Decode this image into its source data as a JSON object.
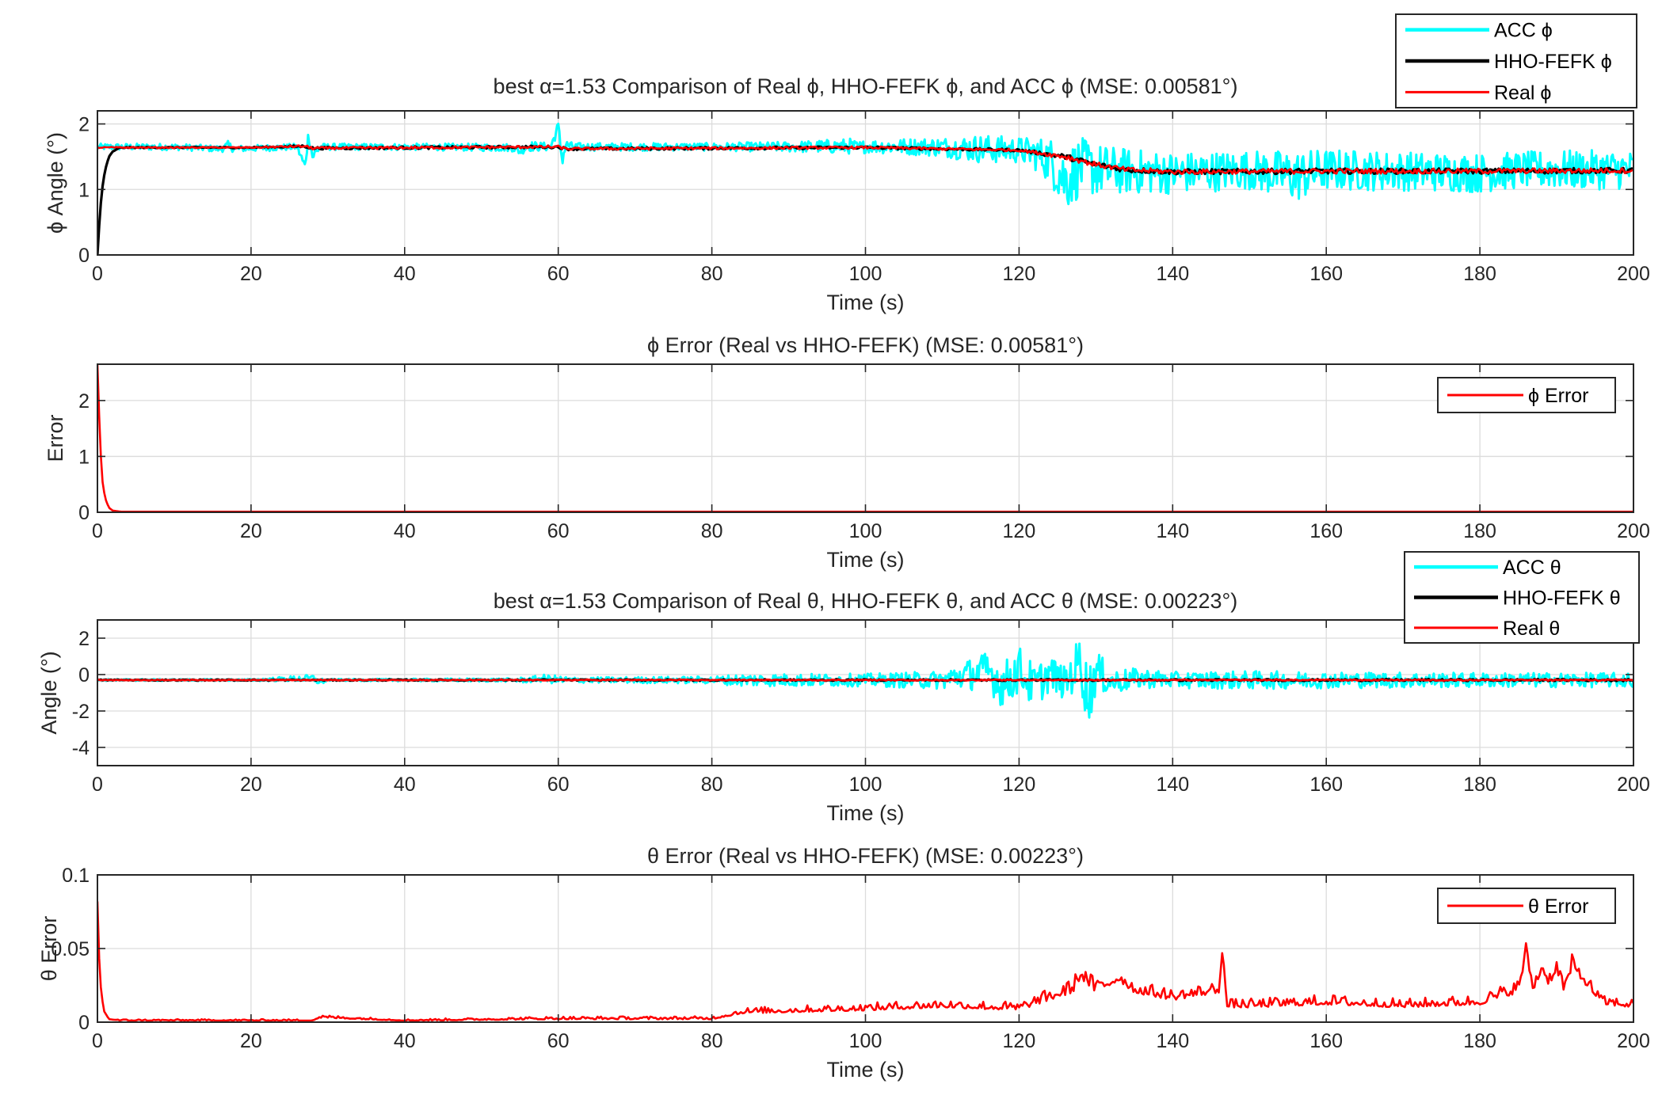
{
  "chart_data": [
    {
      "type": "line",
      "title": "best α=1.53 Comparison of Real ϕ, HHO-FEFK ϕ, and ACC ϕ (MSE: 0.00581°)",
      "xlabel": "Time (s)",
      "ylabel": "ϕ Angle (°)",
      "xlim": [
        0,
        200
      ],
      "ylim": [
        0,
        2.2
      ],
      "xticks": [
        "0",
        "20",
        "40",
        "60",
        "80",
        "100",
        "120",
        "140",
        "160",
        "180",
        "200"
      ],
      "yticks": [
        "0",
        "1",
        "2"
      ],
      "ytick_values": [
        0,
        1,
        2
      ],
      "grid": true,
      "legend_position": "top-right",
      "series": [
        {
          "name": "ACC ϕ",
          "color": "#00ffff",
          "noisy": true,
          "x": [
            0,
            10,
            16,
            17,
            18,
            26,
            27,
            27.5,
            28,
            29,
            40,
            54,
            55,
            56,
            59,
            60,
            60.5,
            61,
            62,
            80,
            90,
            98,
            99,
            100,
            110,
            115,
            120,
            122,
            124,
            126,
            128,
            130,
            134,
            140,
            150,
            156,
            160,
            170,
            180,
            186,
            190,
            200
          ],
          "y": [
            1.65,
            1.65,
            1.62,
            1.66,
            1.62,
            1.65,
            1.35,
            1.85,
            1.5,
            1.65,
            1.65,
            1.64,
            1.58,
            1.66,
            1.65,
            1.95,
            1.45,
            1.68,
            1.65,
            1.65,
            1.65,
            1.66,
            1.62,
            1.66,
            1.65,
            1.62,
            1.6,
            1.55,
            1.45,
            1.15,
            1.35,
            1.3,
            1.28,
            1.25,
            1.3,
            1.2,
            1.3,
            1.28,
            1.25,
            1.3,
            1.3,
            1.3
          ],
          "amplitude": [
            0.05,
            0.05,
            0.05,
            0.08,
            0.05,
            0.05,
            0.1,
            0.1,
            0.1,
            0.05,
            0.05,
            0.06,
            0.06,
            0.08,
            0.06,
            0.1,
            0.12,
            0.08,
            0.06,
            0.06,
            0.08,
            0.12,
            0.12,
            0.1,
            0.15,
            0.22,
            0.2,
            0.25,
            0.35,
            0.5,
            0.45,
            0.4,
            0.35,
            0.32,
            0.3,
            0.4,
            0.32,
            0.3,
            0.3,
            0.28,
            0.3,
            0.3
          ]
        },
        {
          "name": "HHO-FEFK  ϕ",
          "color": "#000000",
          "noisy": false,
          "x": [
            0,
            0.3,
            0.6,
            1,
            1.5,
            2,
            3,
            20,
            27,
            28,
            60,
            61,
            100,
            120,
            123,
            126,
            130,
            134,
            140,
            160,
            180,
            200
          ],
          "y": [
            0,
            0.6,
            1.0,
            1.3,
            1.5,
            1.58,
            1.64,
            1.64,
            1.66,
            1.63,
            1.65,
            1.62,
            1.64,
            1.6,
            1.55,
            1.5,
            1.38,
            1.3,
            1.27,
            1.28,
            1.28,
            1.29
          ],
          "amplitude": [
            0,
            0,
            0,
            0,
            0,
            0,
            0.01,
            0.01,
            0.02,
            0.02,
            0.02,
            0.02,
            0.02,
            0.02,
            0.03,
            0.04,
            0.04,
            0.04,
            0.04,
            0.04,
            0.04,
            0.04
          ]
        },
        {
          "name": "Real ϕ",
          "color": "#ff0000",
          "noisy": false,
          "x": [
            0,
            20,
            27,
            28,
            60,
            61,
            100,
            120,
            123,
            126,
            130,
            134,
            140,
            160,
            180,
            200
          ],
          "y": [
            1.64,
            1.64,
            1.66,
            1.63,
            1.65,
            1.62,
            1.64,
            1.6,
            1.55,
            1.5,
            1.38,
            1.3,
            1.27,
            1.28,
            1.28,
            1.29
          ],
          "amplitude": [
            0.01,
            0.01,
            0.02,
            0.02,
            0.02,
            0.02,
            0.02,
            0.02,
            0.03,
            0.04,
            0.04,
            0.04,
            0.04,
            0.04,
            0.04,
            0.04
          ]
        }
      ]
    },
    {
      "type": "line",
      "title": "ϕ Error (Real vs HHO-FEFK) (MSE: 0.00581°)",
      "xlabel": "Time (s)",
      "ylabel": "Error",
      "xlim": [
        0,
        200
      ],
      "ylim": [
        0,
        2.65
      ],
      "xticks": [
        "0",
        "20",
        "40",
        "60",
        "80",
        "100",
        "120",
        "140",
        "160",
        "180",
        "200"
      ],
      "yticks": [
        "0",
        "1",
        "2"
      ],
      "ytick_values": [
        0,
        1,
        2
      ],
      "grid": true,
      "legend_position": "top-right",
      "series": [
        {
          "name": "ϕ Error",
          "color": "#ff0000",
          "noisy": false,
          "x": [
            0,
            0.3,
            0.6,
            1,
            1.5,
            2,
            3,
            200
          ],
          "y": [
            2.65,
            1.4,
            0.6,
            0.25,
            0.08,
            0.03,
            0.01,
            0.01
          ],
          "amplitude": [
            0,
            0,
            0,
            0,
            0,
            0,
            0,
            0
          ]
        }
      ]
    },
    {
      "type": "line",
      "title": "best α=1.53 Comparison of Real θ, HHO-FEFK θ, and ACC θ (MSE: 0.00223°)",
      "xlabel": "Time (s)",
      "ylabel": "Angle (°)",
      "xlim": [
        0,
        200
      ],
      "ylim": [
        -5,
        3
      ],
      "xticks": [
        "0",
        "20",
        "40",
        "60",
        "80",
        "100",
        "120",
        "140",
        "160",
        "180",
        "200"
      ],
      "yticks": [
        "-4",
        "-2",
        "0",
        "2"
      ],
      "ytick_values": [
        -4,
        -2,
        0,
        2
      ],
      "grid": true,
      "legend_position": "top-right",
      "series": [
        {
          "name": "ACC θ",
          "color": "#00ffff",
          "noisy": true,
          "x": [
            0,
            20,
            28,
            29,
            30,
            54,
            55,
            56,
            58,
            60,
            62,
            80,
            84,
            100,
            110,
            112,
            116,
            118,
            120,
            122,
            124,
            126,
            128,
            129,
            130,
            132,
            136,
            140,
            150,
            160,
            180,
            200
          ],
          "y": [
            -0.3,
            -0.3,
            -0.2,
            -0.4,
            -0.3,
            -0.3,
            -0.3,
            -0.3,
            -0.2,
            -0.3,
            -0.3,
            -0.3,
            -0.3,
            -0.3,
            -0.3,
            -0.1,
            0.2,
            -0.6,
            0.3,
            -0.7,
            0.1,
            -0.5,
            0.8,
            -1.3,
            0.2,
            -0.4,
            -0.2,
            -0.3,
            -0.3,
            -0.3,
            -0.3,
            -0.3
          ],
          "amplitude": [
            0.05,
            0.05,
            0.2,
            0.2,
            0.05,
            0.1,
            0.15,
            0.15,
            0.2,
            0.25,
            0.15,
            0.2,
            0.35,
            0.35,
            0.5,
            0.7,
            1.1,
            1.3,
            1.3,
            1.2,
            1.0,
            0.9,
            1.5,
            1.8,
            1.2,
            0.7,
            0.55,
            0.45,
            0.5,
            0.45,
            0.4,
            0.4
          ]
        },
        {
          "name": "HHO-FEFK θ",
          "color": "#000000",
          "noisy": false,
          "x": [
            0,
            200
          ],
          "y": [
            -0.3,
            -0.3
          ],
          "amplitude": [
            0.03,
            0.06
          ]
        },
        {
          "name": "Real θ",
          "color": "#ff0000",
          "noisy": false,
          "x": [
            0,
            200
          ],
          "y": [
            -0.3,
            -0.3
          ],
          "amplitude": [
            0.02,
            0.04
          ]
        }
      ]
    },
    {
      "type": "line",
      "title": "θ Error (Real vs HHO-FEFK) (MSE: 0.00223°)",
      "xlabel": "Time (s)",
      "ylabel": "θ Error",
      "xlim": [
        0,
        200
      ],
      "ylim": [
        0,
        0.1
      ],
      "xticks": [
        "0",
        "20",
        "40",
        "60",
        "80",
        "100",
        "120",
        "140",
        "160",
        "180",
        "200"
      ],
      "yticks": [
        "0",
        "0.05",
        "0.1"
      ],
      "ytick_values": [
        0,
        0.05,
        0.1
      ],
      "grid": true,
      "legend_position": "top-right",
      "series": [
        {
          "name": "θ Error",
          "color": "#ff0000",
          "noisy": false,
          "x": [
            0,
            0.3,
            0.8,
            1.5,
            3,
            28,
            29,
            40,
            60,
            80,
            84,
            100,
            110,
            120,
            124,
            127,
            128,
            130,
            132,
            133,
            135,
            140,
            146,
            146.5,
            147,
            150,
            160,
            170,
            180,
            185,
            186,
            187,
            188,
            189,
            190,
            191,
            192,
            196,
            200
          ],
          "y": [
            0.082,
            0.03,
            0.008,
            0.002,
            0.001,
            0.001,
            0.003,
            0.001,
            0.002,
            0.002,
            0.006,
            0.008,
            0.01,
            0.008,
            0.015,
            0.02,
            0.03,
            0.02,
            0.025,
            0.028,
            0.02,
            0.015,
            0.02,
            0.05,
            0.01,
            0.01,
            0.012,
            0.01,
            0.012,
            0.02,
            0.045,
            0.02,
            0.035,
            0.025,
            0.035,
            0.02,
            0.036,
            0.012,
            0.01
          ],
          "amplitude": [
            0,
            0,
            0,
            0,
            0.001,
            0.001,
            0.002,
            0.001,
            0.002,
            0.002,
            0.004,
            0.005,
            0.006,
            0.006,
            0.008,
            0.01,
            0.01,
            0.01,
            0.01,
            0.01,
            0.008,
            0.008,
            0.008,
            0.008,
            0.006,
            0.006,
            0.007,
            0.006,
            0.007,
            0.01,
            0.01,
            0.01,
            0.01,
            0.01,
            0.01,
            0.01,
            0.01,
            0.006,
            0.006
          ]
        }
      ]
    }
  ]
}
